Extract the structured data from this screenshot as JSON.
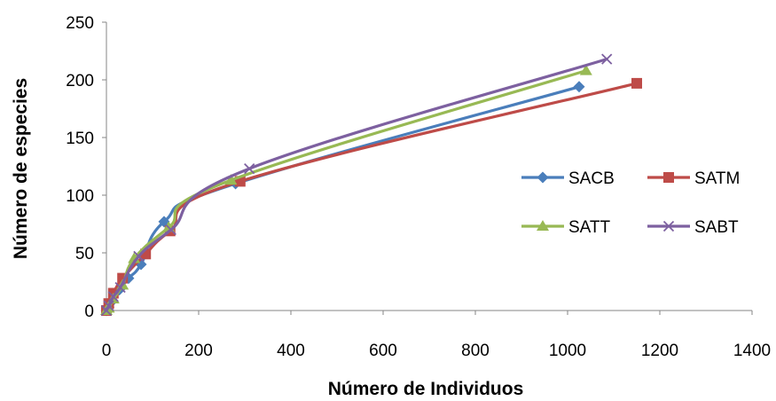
{
  "chart_data": {
    "type": "line",
    "title": "",
    "xlabel": "Número de Individuos",
    "ylabel": "Número de especies",
    "xlim": [
      0,
      1400
    ],
    "ylim": [
      0,
      250
    ],
    "x_ticks": [
      0,
      200,
      400,
      600,
      800,
      1000,
      1200,
      1400
    ],
    "y_ticks": [
      0,
      50,
      100,
      150,
      200,
      250
    ],
    "grid": false,
    "smooth": true,
    "legend": {
      "position": "right",
      "columns": 2
    },
    "series": [
      {
        "name": "SACB",
        "color": "#4A7EBB",
        "marker": "diamond",
        "points": [
          [
            0,
            0
          ],
          [
            5,
            3
          ],
          [
            12,
            8
          ],
          [
            28,
            18
          ],
          [
            48,
            28
          ],
          [
            75,
            40
          ],
          [
            125,
            77
          ],
          [
            280,
            110
          ],
          [
            1025,
            194
          ]
        ]
      },
      {
        "name": "SATM",
        "color": "#BE4B48",
        "marker": "square",
        "points": [
          [
            0,
            0
          ],
          [
            5,
            6
          ],
          [
            15,
            15
          ],
          [
            35,
            28
          ],
          [
            85,
            49
          ],
          [
            138,
            69
          ],
          [
            290,
            112
          ],
          [
            1150,
            197
          ]
        ]
      },
      {
        "name": "SATT",
        "color": "#98B954",
        "marker": "triangle",
        "points": [
          [
            0,
            0
          ],
          [
            5,
            2
          ],
          [
            15,
            10
          ],
          [
            35,
            22
          ],
          [
            60,
            45
          ],
          [
            135,
            72
          ],
          [
            270,
            113
          ],
          [
            1040,
            208
          ]
        ]
      },
      {
        "name": "SABT",
        "color": "#7D60A0",
        "marker": "x",
        "points": [
          [
            0,
            0
          ],
          [
            5,
            4
          ],
          [
            15,
            12
          ],
          [
            30,
            20
          ],
          [
            70,
            47
          ],
          [
            140,
            70
          ],
          [
            310,
            123
          ],
          [
            1085,
            218
          ]
        ]
      }
    ]
  }
}
